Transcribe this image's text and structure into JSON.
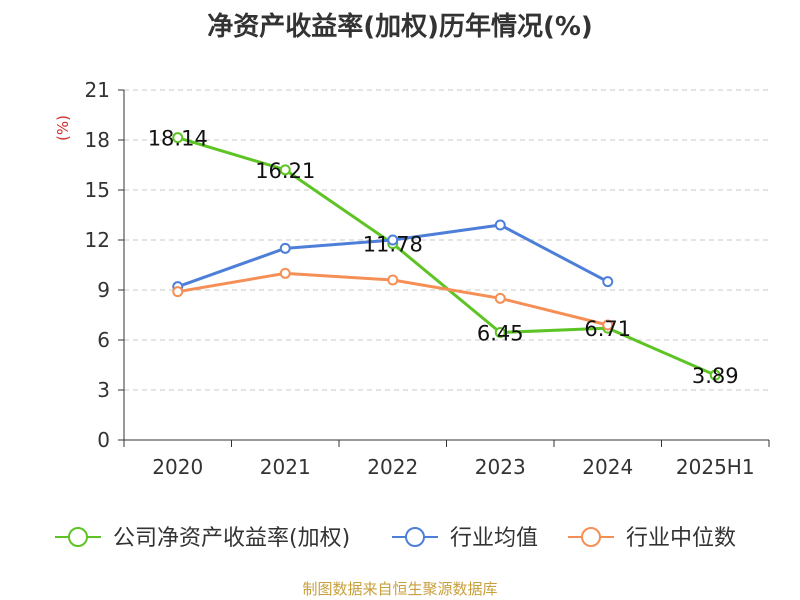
{
  "chart_data": {
    "type": "line",
    "title": "净资产收益率(加权)历年情况(%)",
    "ylabel": "(%)",
    "xlabel": "",
    "categories": [
      "2020",
      "2021",
      "2022",
      "2023",
      "2024",
      "2025H1"
    ],
    "ylim": [
      0,
      21
    ],
    "yticks": [
      0,
      3,
      6,
      9,
      12,
      15,
      18,
      21
    ],
    "grid": true,
    "legend_position": "bottom",
    "series": [
      {
        "name": "公司净资产收益率(加权)",
        "color": "#5ec425",
        "values": [
          18.14,
          16.21,
          11.78,
          6.45,
          6.71,
          3.89
        ],
        "labels": [
          "18.14",
          "16.21",
          "11.78",
          "6.45",
          "6.71",
          "3.89"
        ]
      },
      {
        "name": "行业均值",
        "color": "#4e7fd8",
        "values": [
          9.2,
          11.5,
          12.0,
          12.9,
          9.5,
          null
        ]
      },
      {
        "name": "行业中位数",
        "color": "#f58f55",
        "values": [
          8.9,
          10.0,
          9.6,
          8.5,
          6.9,
          null
        ]
      }
    ]
  },
  "source": "制图数据来自恒生聚源数据库"
}
